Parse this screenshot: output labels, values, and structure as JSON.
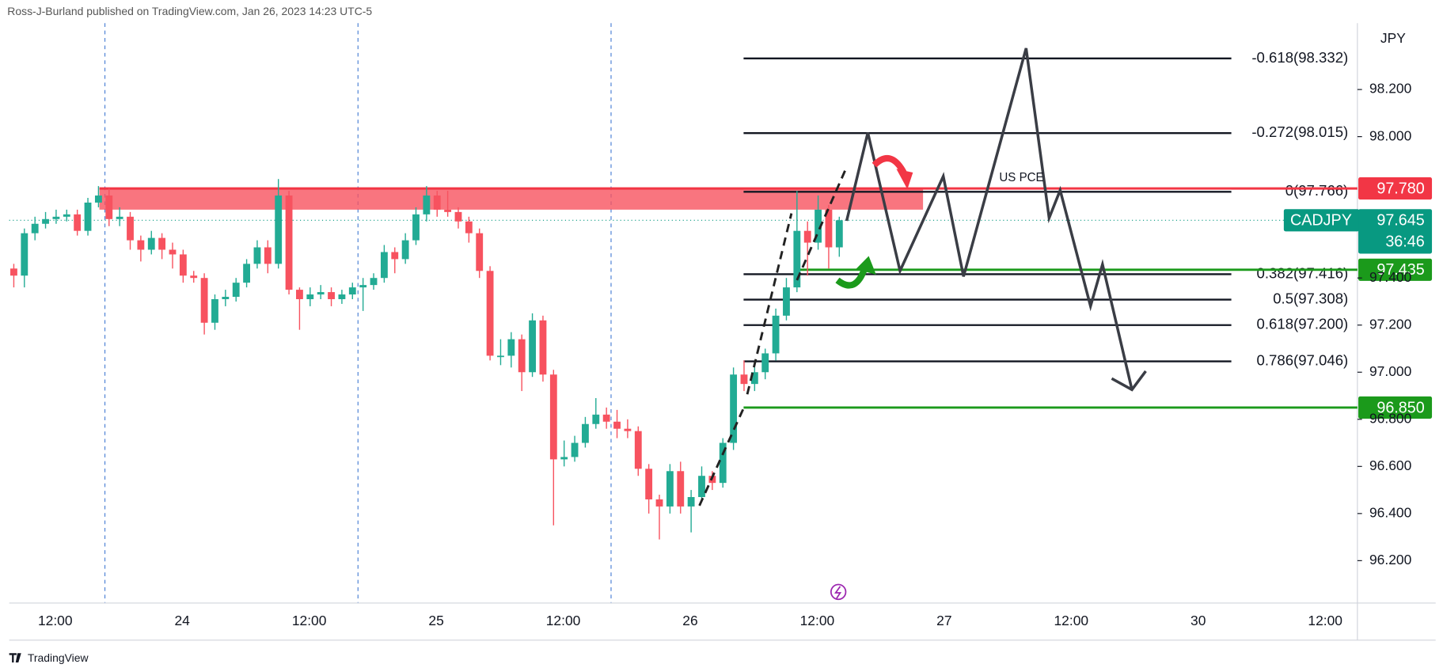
{
  "header": "Ross-J-Burland published on TradingView.com, Jan 26, 2023 14:23 UTC-5",
  "footer": "TradingView",
  "chart_data": {
    "type": "candlestick",
    "currency": "JPY",
    "x_labels": [
      "12:00",
      "24",
      "12:00",
      "25",
      "12:00",
      "26",
      "12:00",
      "27",
      "12:00",
      "30",
      "12:00"
    ],
    "open": [
      97.44,
      97.41,
      97.59,
      97.63,
      97.65,
      97.66,
      97.67,
      97.6,
      97.72,
      97.75,
      97.65,
      97.66,
      97.56,
      97.52,
      97.57,
      97.52,
      97.5,
      97.41,
      97.4,
      97.21,
      97.31,
      97.32,
      97.38,
      97.46,
      97.53,
      97.46,
      97.75,
      97.35,
      97.31,
      97.33,
      97.34,
      97.31,
      97.33,
      97.36,
      97.37,
      97.4,
      97.51,
      97.48,
      97.56,
      97.67,
      97.75,
      97.69,
      97.68,
      97.64,
      97.59,
      97.43,
      97.07,
      97.07,
      97.14,
      97.0,
      97.22,
      96.99,
      96.63,
      96.64,
      96.7,
      96.78,
      96.82,
      96.79,
      96.76,
      96.75,
      96.59,
      96.46,
      96.43,
      96.58,
      96.43,
      96.47,
      96.56,
      96.53,
      96.7,
      96.99,
      96.95,
      97.0,
      97.08,
      97.24,
      97.36,
      97.6,
      97.55,
      97.69,
      97.53
    ],
    "high": [
      97.46,
      97.61,
      97.66,
      97.68,
      97.69,
      97.69,
      97.69,
      97.74,
      97.79,
      97.78,
      97.7,
      97.68,
      97.58,
      97.6,
      97.59,
      97.55,
      97.52,
      97.43,
      97.42,
      97.33,
      97.35,
      97.4,
      97.48,
      97.56,
      97.56,
      97.82,
      97.77,
      97.36,
      97.36,
      97.37,
      97.36,
      97.35,
      97.38,
      97.4,
      97.42,
      97.54,
      97.53,
      97.59,
      97.7,
      97.79,
      97.77,
      97.77,
      97.7,
      97.66,
      97.61,
      97.45,
      97.14,
      97.17,
      97.16,
      97.25,
      97.24,
      97.01,
      96.71,
      96.73,
      96.81,
      96.89,
      96.85,
      96.84,
      96.8,
      96.77,
      96.61,
      96.48,
      96.61,
      96.62,
      96.5,
      96.6,
      96.58,
      96.72,
      97.02,
      97.05,
      97.03,
      97.1,
      97.27,
      97.4,
      97.77,
      97.64,
      97.75,
      97.71,
      97.66
    ],
    "low": [
      97.36,
      97.36,
      97.56,
      97.61,
      97.63,
      97.64,
      97.58,
      97.58,
      97.7,
      97.62,
      97.62,
      97.52,
      97.47,
      97.5,
      97.48,
      97.44,
      97.38,
      97.38,
      97.16,
      97.18,
      97.28,
      97.3,
      97.36,
      97.44,
      97.42,
      97.44,
      97.33,
      97.18,
      97.28,
      97.31,
      97.28,
      97.29,
      97.31,
      97.26,
      97.35,
      97.38,
      97.42,
      97.46,
      97.54,
      97.64,
      97.66,
      97.66,
      97.61,
      97.55,
      97.4,
      97.05,
      97.03,
      97.02,
      96.92,
      96.98,
      96.96,
      96.35,
      96.6,
      96.62,
      96.68,
      96.76,
      96.76,
      96.72,
      96.72,
      96.56,
      96.4,
      96.29,
      96.4,
      96.4,
      96.32,
      96.45,
      96.5,
      96.51,
      96.67,
      96.92,
      96.92,
      96.97,
      97.05,
      97.22,
      97.34,
      97.41,
      97.52,
      97.44,
      97.49
    ],
    "close": [
      97.41,
      97.59,
      97.63,
      97.65,
      97.66,
      97.67,
      97.6,
      97.72,
      97.75,
      97.65,
      97.66,
      97.56,
      97.52,
      97.57,
      97.52,
      97.5,
      97.41,
      97.4,
      97.21,
      97.31,
      97.32,
      97.38,
      97.46,
      97.53,
      97.46,
      97.75,
      97.35,
      97.31,
      97.33,
      97.34,
      97.31,
      97.33,
      97.36,
      97.37,
      97.4,
      97.51,
      97.48,
      97.56,
      97.67,
      97.75,
      97.69,
      97.68,
      97.64,
      97.59,
      97.43,
      97.07,
      97.07,
      97.14,
      97.0,
      97.22,
      96.99,
      96.63,
      96.64,
      96.7,
      96.78,
      96.82,
      96.79,
      96.76,
      96.75,
      96.59,
      96.46,
      96.43,
      96.58,
      96.43,
      96.47,
      96.56,
      96.53,
      96.7,
      96.99,
      96.95,
      97.0,
      97.08,
      97.24,
      97.36,
      97.6,
      97.55,
      97.69,
      97.53,
      97.645
    ],
    "up_color": "#22ab94",
    "down_color": "#f7525f",
    "ylim": [
      96.02,
      98.58
    ],
    "yticks": [
      {
        "value": 96.2,
        "label": "96.200"
      },
      {
        "value": 96.4,
        "label": "96.400"
      },
      {
        "value": 96.6,
        "label": "96.600"
      },
      {
        "value": 96.8,
        "label": "96.800"
      },
      {
        "value": 97,
        "label": "97.000"
      },
      {
        "value": 97.2,
        "label": "97.200"
      },
      {
        "value": 97.4,
        "label": "97.400"
      },
      {
        "value": 98,
        "label": "98.000"
      },
      {
        "value": 98.2,
        "label": "98.200"
      }
    ],
    "fib_levels": [
      {
        "label": "-0.618(98.332)",
        "value": 98.332
      },
      {
        "label": "-0.272(98.015)",
        "value": 98.015
      },
      {
        "label": "0(97.766)",
        "value": 97.766
      },
      {
        "label": "0.382(97.416)",
        "value": 97.416
      },
      {
        "label": "0.5(97.308)",
        "value": 97.308
      },
      {
        "label": "0.618(97.200)",
        "value": 97.2
      },
      {
        "label": "0.786(97.046)",
        "value": 97.046
      }
    ],
    "resistance_zone": [
      97.69,
      97.78
    ],
    "price_labels": [
      {
        "label": "97.780",
        "value": 97.78,
        "color": "#f23645"
      },
      {
        "label": "97.435",
        "value": 97.435,
        "color": "#1b9a1b"
      },
      {
        "label": "96.850",
        "value": 96.85,
        "color": "#1b9a1b"
      }
    ],
    "last_price": {
      "symbol": "CADJPY",
      "label": "97.645",
      "value": 97.645,
      "countdown": "36:46",
      "color": "#089981"
    },
    "annotation": "US PCE"
  }
}
